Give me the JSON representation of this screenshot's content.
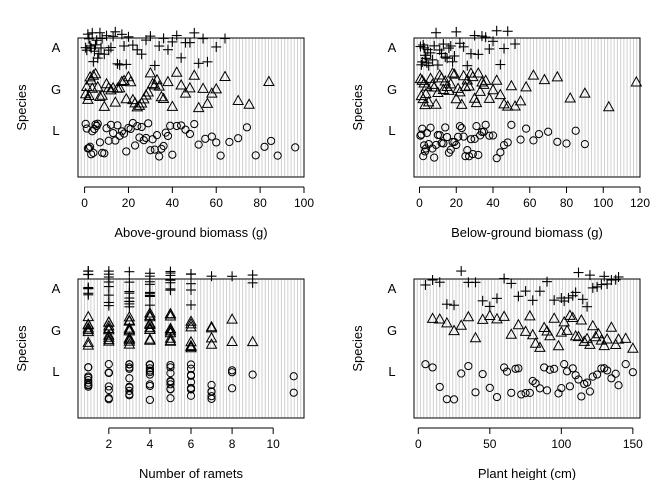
{
  "chart_data": [
    {
      "type": "scatter",
      "title": "",
      "xlabel": "Above-ground biomass (g)",
      "ylabel": "Species",
      "xlim": [
        -3,
        100
      ],
      "xticks": [
        0,
        20,
        40,
        60,
        80,
        100
      ],
      "xtick_labels": [
        "0",
        "20",
        "40",
        "60",
        "80",
        "100"
      ],
      "y_categories": [
        "A",
        "G",
        "L"
      ],
      "grid": "vertical lines",
      "series": [
        {
          "category": "A",
          "marker": "plus",
          "x": [
            0.5,
            1,
            1.5,
            2,
            2.5,
            3,
            3.5,
            4,
            4.5,
            5,
            5.5,
            6,
            6.5,
            7,
            7.5,
            8,
            9,
            10,
            11,
            12,
            13,
            14,
            15,
            16,
            17,
            18,
            19,
            20,
            22,
            24,
            26,
            28,
            30,
            32,
            34,
            36,
            38,
            40,
            42,
            44,
            46,
            48,
            50,
            52,
            54,
            56,
            60,
            64
          ]
        },
        {
          "category": "G",
          "marker": "triangle",
          "x": [
            0.5,
            1,
            1.5,
            2,
            2.5,
            3,
            3.5,
            4,
            5,
            6,
            7,
            8,
            9,
            10,
            11,
            12,
            13,
            14,
            15,
            16,
            17,
            18,
            19,
            20,
            21,
            22,
            23,
            24,
            25,
            26,
            27,
            28,
            29,
            30,
            31,
            32,
            33,
            34,
            35,
            36,
            38,
            40,
            42,
            44,
            46,
            48,
            50,
            52,
            54,
            56,
            58,
            60,
            64,
            70,
            75,
            84
          ]
        },
        {
          "category": "L",
          "marker": "circle",
          "x": [
            0.5,
            1,
            1.5,
            2,
            2.5,
            3,
            3.5,
            4,
            4.5,
            5,
            5.5,
            6,
            7,
            8,
            9,
            10,
            11,
            12,
            13,
            14,
            15,
            16,
            17,
            18,
            19,
            20,
            21,
            22,
            23,
            24,
            25,
            26,
            27,
            28,
            29,
            30,
            31,
            32,
            33,
            34,
            35,
            36,
            37,
            38,
            39,
            40,
            42,
            44,
            46,
            48,
            50,
            52,
            55,
            58,
            60,
            62,
            66,
            70,
            74,
            78,
            82,
            85,
            88,
            96
          ]
        }
      ]
    },
    {
      "type": "scatter",
      "title": "",
      "xlabel": "Below-ground biomass (g)",
      "ylabel": "Species",
      "xlim": [
        -3,
        120
      ],
      "xticks": [
        0,
        20,
        40,
        60,
        80,
        100,
        120
      ],
      "xtick_labels": [
        "0",
        "20",
        "40",
        "60",
        "80",
        "100",
        "120"
      ],
      "y_categories": [
        "A",
        "G",
        "L"
      ],
      "grid": "vertical lines",
      "series": [
        {
          "category": "A",
          "marker": "plus",
          "x": [
            0.5,
            1,
            1.5,
            2,
            2.5,
            3,
            3.5,
            4,
            4.5,
            5,
            6,
            7,
            8,
            9,
            10,
            11,
            12,
            13,
            14,
            15,
            16,
            17,
            18,
            19,
            20,
            22,
            24,
            26,
            28,
            30,
            32,
            34,
            36,
            38,
            40,
            42,
            44,
            46,
            48,
            52
          ]
        },
        {
          "category": "G",
          "marker": "triangle",
          "x": [
            0.5,
            1,
            1.5,
            2,
            2.5,
            3,
            3.5,
            4,
            5,
            6,
            7,
            8,
            9,
            10,
            11,
            12,
            13,
            14,
            15,
            16,
            17,
            18,
            19,
            20,
            21,
            22,
            23,
            24,
            25,
            26,
            27,
            28,
            29,
            30,
            31,
            32,
            33,
            34,
            35,
            36,
            38,
            40,
            42,
            44,
            46,
            48,
            50,
            52,
            55,
            58,
            62,
            68,
            75,
            82,
            90,
            103,
            118
          ]
        },
        {
          "category": "L",
          "marker": "circle",
          "x": [
            0.5,
            1,
            1.5,
            2,
            2.5,
            3,
            3.5,
            4,
            5,
            6,
            7,
            8,
            9,
            10,
            11,
            12,
            13,
            14,
            15,
            16,
            17,
            18,
            19,
            20,
            21,
            22,
            23,
            24,
            25,
            26,
            27,
            28,
            29,
            30,
            31,
            32,
            33,
            34,
            35,
            36,
            38,
            40,
            42,
            44,
            46,
            48,
            50,
            55,
            58,
            62,
            65,
            70,
            75,
            80,
            85,
            90
          ]
        }
      ]
    },
    {
      "type": "scatter",
      "title": "",
      "xlabel": "Number of ramets",
      "ylabel": "Species",
      "xlim": [
        0.5,
        11.5
      ],
      "xticks": [
        2,
        4,
        6,
        8,
        10
      ],
      "xtick_labels": [
        "2",
        "4",
        "6",
        "8",
        "10"
      ],
      "y_categories": [
        "A",
        "G",
        "L"
      ],
      "grid": "vertical lines",
      "series": [
        {
          "category": "A",
          "marker": "plus",
          "x": [
            1,
            1,
            1,
            1,
            1,
            1,
            1,
            1,
            1,
            2,
            2,
            2,
            2,
            2,
            2,
            2,
            2,
            3,
            3,
            3,
            3,
            3,
            3,
            3,
            3,
            3,
            4,
            4,
            4,
            4,
            4,
            4,
            4,
            4,
            4,
            5,
            5,
            5,
            5,
            5,
            5,
            5,
            5,
            6,
            6,
            6,
            6,
            6,
            7,
            8,
            9,
            9
          ]
        },
        {
          "category": "G",
          "marker": "triangle",
          "x": [
            1,
            1,
            1,
            1,
            1,
            1,
            1,
            1,
            2,
            2,
            2,
            2,
            2,
            2,
            2,
            2,
            2,
            3,
            3,
            3,
            3,
            3,
            3,
            3,
            3,
            3,
            3,
            4,
            4,
            4,
            4,
            4,
            4,
            4,
            4,
            4,
            4,
            5,
            5,
            5,
            5,
            5,
            5,
            5,
            5,
            5,
            5,
            6,
            6,
            6,
            6,
            6,
            6,
            6,
            7,
            7,
            7,
            7,
            8,
            8,
            9
          ]
        },
        {
          "category": "L",
          "marker": "circle",
          "x": [
            1,
            1,
            1,
            1,
            1,
            1,
            1,
            1,
            1,
            2,
            2,
            2,
            2,
            2,
            2,
            2,
            2,
            2,
            3,
            3,
            3,
            3,
            3,
            3,
            3,
            3,
            3,
            3,
            4,
            4,
            4,
            4,
            4,
            4,
            4,
            4,
            4,
            4,
            5,
            5,
            5,
            5,
            5,
            5,
            5,
            5,
            5,
            6,
            6,
            6,
            6,
            6,
            6,
            6,
            6,
            7,
            7,
            7,
            7,
            7,
            8,
            8,
            8,
            9,
            11,
            11
          ]
        }
      ]
    },
    {
      "type": "scatter",
      "title": "",
      "xlabel": "Plant height (cm)",
      "ylabel": "Species",
      "xlim": [
        -3,
        155
      ],
      "xticks": [
        0,
        50,
        100,
        150
      ],
      "xtick_labels": [
        "0",
        "50",
        "100",
        "150"
      ],
      "y_categories": [
        "A",
        "G",
        "L"
      ],
      "grid": "vertical lines",
      "series": [
        {
          "category": "A",
          "marker": "plus",
          "x": [
            5,
            10,
            15,
            20,
            25,
            30,
            35,
            40,
            45,
            50,
            55,
            60,
            65,
            70,
            75,
            80,
            85,
            90,
            95,
            100,
            102,
            105,
            108,
            110,
            112,
            115,
            118,
            120,
            122,
            125,
            128,
            130,
            132,
            135,
            138,
            140
          ]
        },
        {
          "category": "G",
          "marker": "triangle",
          "x": [
            10,
            15,
            20,
            25,
            30,
            35,
            40,
            45,
            50,
            55,
            60,
            65,
            70,
            75,
            78,
            80,
            82,
            85,
            88,
            90,
            92,
            95,
            98,
            100,
            102,
            104,
            106,
            108,
            110,
            112,
            114,
            116,
            118,
            120,
            122,
            124,
            126,
            128,
            130,
            132,
            135,
            138,
            140,
            145,
            150
          ]
        },
        {
          "category": "L",
          "marker": "circle",
          "x": [
            5,
            10,
            15,
            20,
            25,
            30,
            35,
            40,
            45,
            50,
            55,
            60,
            62,
            65,
            68,
            70,
            72,
            75,
            78,
            80,
            82,
            85,
            88,
            90,
            92,
            95,
            98,
            100,
            102,
            104,
            106,
            108,
            110,
            112,
            114,
            116,
            118,
            120,
            122,
            125,
            128,
            130,
            132,
            135,
            138,
            140,
            145,
            150
          ]
        }
      ]
    }
  ]
}
